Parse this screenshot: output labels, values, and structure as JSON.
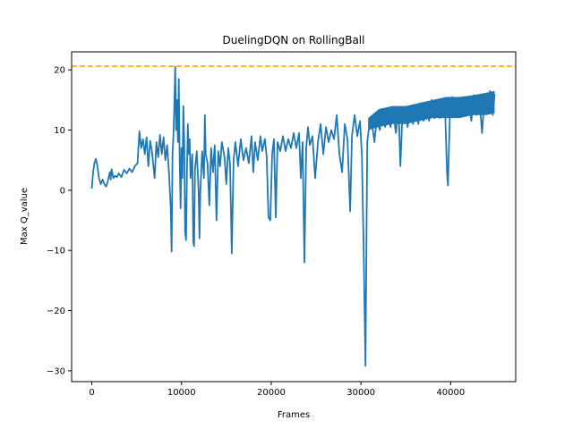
{
  "chart_data": {
    "type": "line",
    "title": "DuelingDQN on RollingBall",
    "xlabel": "Frames",
    "ylabel": "Max Q_value",
    "xlim": [
      -2250,
      47250
    ],
    "ylim": [
      -31.8,
      23.0
    ],
    "xticks": [
      0,
      10000,
      20000,
      30000,
      40000
    ],
    "yticks": [
      -30,
      -20,
      -10,
      0,
      10,
      20
    ],
    "grid": false,
    "legend": "none",
    "colors": {
      "series": "#1f77b4",
      "reference": "#f0a30a"
    },
    "reference_line": {
      "y": 20.6,
      "style": "dashed"
    },
    "series": [
      {
        "points": [
          [
            0,
            0.3
          ],
          [
            150,
            3.0
          ],
          [
            300,
            4.6
          ],
          [
            450,
            5.2
          ],
          [
            600,
            4.2
          ],
          [
            800,
            2.0
          ],
          [
            1000,
            1.0
          ],
          [
            1200,
            1.8
          ],
          [
            1400,
            1.0
          ],
          [
            1600,
            0.6
          ],
          [
            1800,
            1.6
          ],
          [
            2000,
            3.0
          ],
          [
            2100,
            1.8
          ],
          [
            2200,
            3.5
          ],
          [
            2400,
            2.0
          ],
          [
            2600,
            2.4
          ],
          [
            2800,
            2.2
          ],
          [
            3000,
            2.8
          ],
          [
            3300,
            2.2
          ],
          [
            3600,
            3.4
          ],
          [
            3900,
            2.8
          ],
          [
            4200,
            3.6
          ],
          [
            4500,
            3.0
          ],
          [
            4800,
            4.0
          ],
          [
            5100,
            4.5
          ],
          [
            5300,
            9.8
          ],
          [
            5500,
            7.0
          ],
          [
            5700,
            8.5
          ],
          [
            5900,
            6.0
          ],
          [
            6100,
            8.8
          ],
          [
            6300,
            4.0
          ],
          [
            6500,
            8.2
          ],
          [
            6700,
            6.5
          ],
          [
            7000,
            2.0
          ],
          [
            7200,
            8.0
          ],
          [
            7400,
            5.5
          ],
          [
            7600,
            9.2
          ],
          [
            7800,
            6.0
          ],
          [
            8000,
            8.8
          ],
          [
            8200,
            5.0
          ],
          [
            8400,
            7.5
          ],
          [
            8600,
            3.0
          ],
          [
            8800,
            -3.0
          ],
          [
            8900,
            -10.2
          ],
          [
            9000,
            6.0
          ],
          [
            9100,
            9.0
          ],
          [
            9200,
            14.0
          ],
          [
            9300,
            20.5
          ],
          [
            9400,
            10.0
          ],
          [
            9500,
            15.0
          ],
          [
            9600,
            8.0
          ],
          [
            9700,
            18.5
          ],
          [
            9800,
            5.0
          ],
          [
            9900,
            -3.0
          ],
          [
            10000,
            7.0
          ],
          [
            10100,
            2.0
          ],
          [
            10200,
            14.0
          ],
          [
            10300,
            8.0
          ],
          [
            10400,
            -7.0
          ],
          [
            10500,
            -8.3
          ],
          [
            10600,
            3.0
          ],
          [
            10700,
            11.0
          ],
          [
            10800,
            6.0
          ],
          [
            10900,
            8.5
          ],
          [
            11000,
            2.0
          ],
          [
            11200,
            6.0
          ],
          [
            11300,
            -8.5
          ],
          [
            11400,
            -9.3
          ],
          [
            11500,
            3.5
          ],
          [
            11700,
            6.5
          ],
          [
            11900,
            0.0
          ],
          [
            12000,
            -8.0
          ],
          [
            12100,
            0.0
          ],
          [
            12300,
            6.5
          ],
          [
            12500,
            2.0
          ],
          [
            12600,
            12.5
          ],
          [
            12700,
            6.0
          ],
          [
            12900,
            4.5
          ],
          [
            13100,
            -2.5
          ],
          [
            13300,
            7.0
          ],
          [
            13500,
            3.0
          ],
          [
            13700,
            7.5
          ],
          [
            13900,
            -5.0
          ],
          [
            14100,
            6.5
          ],
          [
            14300,
            4.0
          ],
          [
            14500,
            8.0
          ],
          [
            14800,
            5.5
          ],
          [
            15000,
            1.0
          ],
          [
            15200,
            7.0
          ],
          [
            15400,
            4.5
          ],
          [
            15600,
            -10.5
          ],
          [
            15800,
            5.0
          ],
          [
            16000,
            8.0
          ],
          [
            16300,
            4.0
          ],
          [
            16600,
            8.5
          ],
          [
            16900,
            5.0
          ],
          [
            17200,
            7.0
          ],
          [
            17500,
            4.5
          ],
          [
            17800,
            9.0
          ],
          [
            18000,
            3.0
          ],
          [
            18200,
            8.0
          ],
          [
            18500,
            5.0
          ],
          [
            18800,
            9.0
          ],
          [
            19000,
            6.5
          ],
          [
            19300,
            8.5
          ],
          [
            19500,
            5.5
          ],
          [
            19700,
            -4.5
          ],
          [
            19900,
            -5.0
          ],
          [
            20100,
            6.0
          ],
          [
            20300,
            8.5
          ],
          [
            20500,
            -4.5
          ],
          [
            20700,
            8.0
          ],
          [
            21000,
            6.5
          ],
          [
            21300,
            9.0
          ],
          [
            21600,
            6.5
          ],
          [
            21900,
            8.5
          ],
          [
            22200,
            7.0
          ],
          [
            22500,
            9.5
          ],
          [
            22800,
            7.0
          ],
          [
            23100,
            9.5
          ],
          [
            23300,
            2.0
          ],
          [
            23500,
            8.0
          ],
          [
            23700,
            -12.0
          ],
          [
            23900,
            7.0
          ],
          [
            24100,
            10.5
          ],
          [
            24300,
            7.5
          ],
          [
            24600,
            9.0
          ],
          [
            24900,
            2.0
          ],
          [
            25200,
            8.0
          ],
          [
            25500,
            11.0
          ],
          [
            25800,
            6.0
          ],
          [
            26100,
            10.5
          ],
          [
            26400,
            8.0
          ],
          [
            26700,
            10.0
          ],
          [
            27000,
            8.5
          ],
          [
            27300,
            12.5
          ],
          [
            27600,
            6.0
          ],
          [
            27900,
            3.0
          ],
          [
            28200,
            11.0
          ],
          [
            28500,
            8.5
          ],
          [
            28800,
            -3.5
          ],
          [
            29000,
            9.0
          ],
          [
            29300,
            12.5
          ],
          [
            29600,
            9.0
          ],
          [
            29900,
            11.5
          ],
          [
            30100,
            6.0
          ],
          [
            30300,
            -10.0
          ],
          [
            30500,
            -29.2
          ],
          [
            30700,
            8.0
          ],
          [
            30900,
            10.5
          ],
          [
            31200,
            11.5
          ],
          [
            31500,
            8.0
          ],
          [
            31800,
            12.5
          ],
          [
            32100,
            10.0
          ],
          [
            32400,
            13.0
          ],
          [
            32700,
            10.5
          ],
          [
            33000,
            12.8
          ],
          [
            33300,
            10.5
          ],
          [
            33600,
            13.0
          ],
          [
            33900,
            9.5
          ],
          [
            34200,
            13.5
          ],
          [
            34400,
            4.0
          ],
          [
            34600,
            11.5
          ],
          [
            34900,
            13.5
          ],
          [
            35200,
            10.5
          ],
          [
            35500,
            14.0
          ],
          [
            35800,
            11.0
          ],
          [
            36100,
            14.0
          ],
          [
            36400,
            11.0
          ],
          [
            36700,
            14.5
          ],
          [
            37000,
            11.5
          ],
          [
            37300,
            14.0
          ],
          [
            37600,
            11.5
          ],
          [
            37900,
            15.0
          ],
          [
            38200,
            12.0
          ],
          [
            38500,
            14.5
          ],
          [
            38800,
            12.0
          ],
          [
            39100,
            15.0
          ],
          [
            39400,
            12.5
          ],
          [
            39600,
            3.0
          ],
          [
            39700,
            0.8
          ],
          [
            39900,
            12.0
          ],
          [
            40200,
            15.5
          ],
          [
            40500,
            12.5
          ],
          [
            40800,
            15.0
          ],
          [
            41100,
            12.5
          ],
          [
            41400,
            15.5
          ],
          [
            41700,
            12.5
          ],
          [
            42000,
            15.5
          ],
          [
            42300,
            11.5
          ],
          [
            42600,
            15.8
          ],
          [
            42900,
            12.5
          ],
          [
            43200,
            15.5
          ],
          [
            43500,
            9.5
          ],
          [
            43800,
            16.0
          ],
          [
            44100,
            13.0
          ],
          [
            44400,
            16.5
          ],
          [
            44700,
            12.5
          ],
          [
            44900,
            16.0
          ]
        ],
        "band": [
          [
            30800,
            10.0,
            12.0
          ],
          [
            32000,
            10.5,
            13.5
          ],
          [
            33500,
            11.0,
            14.0
          ],
          [
            35000,
            11.0,
            14.0
          ],
          [
            36500,
            11.5,
            14.5
          ],
          [
            38000,
            12.0,
            15.0
          ],
          [
            39500,
            12.0,
            15.5
          ],
          [
            41000,
            12.0,
            15.5
          ],
          [
            42500,
            12.5,
            15.8
          ],
          [
            44000,
            12.5,
            16.2
          ],
          [
            44900,
            12.8,
            16.5
          ]
        ]
      }
    ]
  }
}
